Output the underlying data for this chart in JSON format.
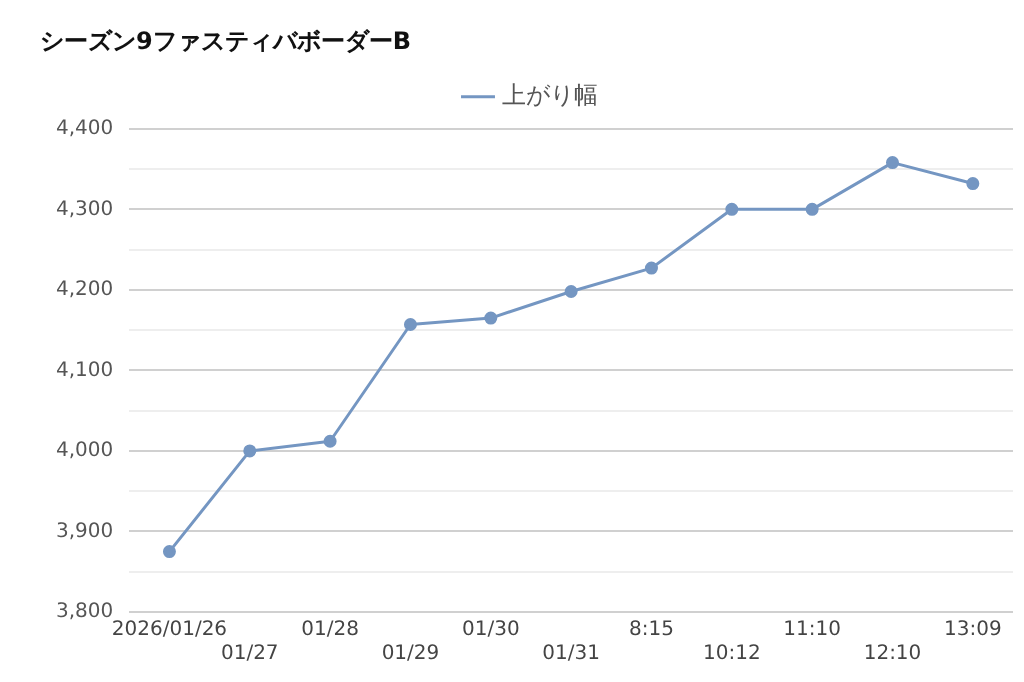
{
  "chart_data": {
    "type": "line",
    "title": "シーズン9ファスティバボーダーB",
    "categories": [
      "2026/01/26",
      "01/27",
      "01/28",
      "01/29",
      "01/30",
      "01/31",
      "8:15",
      "10:12",
      "11:10",
      "12:10",
      "13:09"
    ],
    "series": [
      {
        "name": "上がり幅",
        "color": "#7496c2",
        "values": [
          3875,
          4000,
          4012,
          4157,
          4165,
          4198,
          4227,
          4300,
          4300,
          4358,
          4332
        ]
      }
    ],
    "ylim": [
      3800,
      4400
    ],
    "yticks": [
      {
        "value": 3800,
        "label": "3,800"
      },
      {
        "value": 3850,
        "label": null
      },
      {
        "value": 3900,
        "label": "3,900"
      },
      {
        "value": 3950,
        "label": null
      },
      {
        "value": 4000,
        "label": "4,000"
      },
      {
        "value": 4050,
        "label": null
      },
      {
        "value": 4100,
        "label": "4,100"
      },
      {
        "value": 4150,
        "label": null
      },
      {
        "value": 4200,
        "label": "4,200"
      },
      {
        "value": 4250,
        "label": null
      },
      {
        "value": 4300,
        "label": "4,300"
      },
      {
        "value": 4350,
        "label": null
      },
      {
        "value": 4400,
        "label": "4,400"
      }
    ],
    "grid": "y",
    "legend": "top",
    "marker": "circle",
    "line_style": "solid"
  }
}
